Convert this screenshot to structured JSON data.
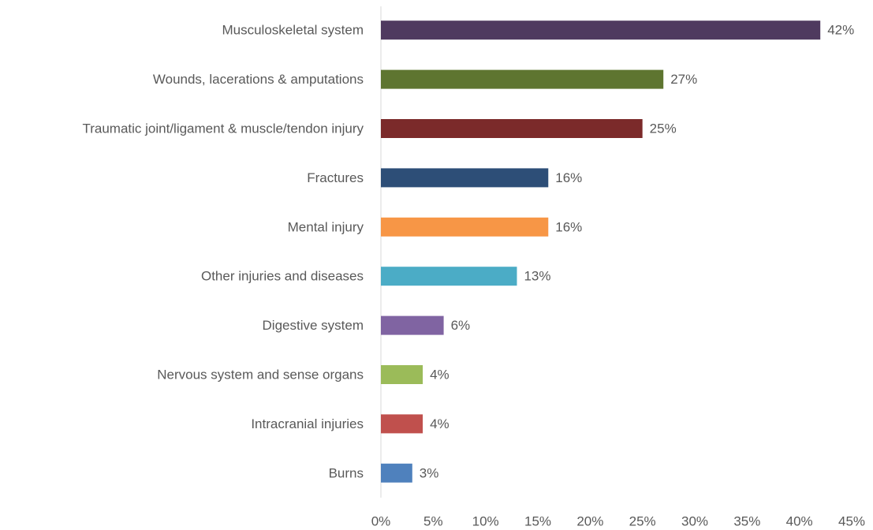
{
  "chart_data": {
    "type": "barh",
    "categories": [
      "Musculoskeletal system",
      "Wounds, lacerations & amputations",
      "Traumatic joint/ligament & muscle/tendon injury",
      "Fractures",
      "Mental injury",
      "Other injuries and diseases",
      "Digestive system",
      "Nervous system and sense organs",
      "Intracranial injuries",
      "Burns"
    ],
    "values": [
      42,
      27,
      25,
      16,
      16,
      13,
      6,
      4,
      4,
      3
    ],
    "value_labels": [
      "42%",
      "27%",
      "25%",
      "16%",
      "16%",
      "13%",
      "6%",
      "4%",
      "4%",
      "3%"
    ],
    "colors": [
      "#4f3a5f",
      "#5e7530",
      "#7b2a2a",
      "#2d4e77",
      "#f79646",
      "#4bacc6",
      "#8064a2",
      "#9bbb59",
      "#c0504d",
      "#4f81bd"
    ],
    "xlim": [
      0,
      45
    ],
    "xticks": [
      {
        "value": 0,
        "label": "0%"
      },
      {
        "value": 5,
        "label": "5%"
      },
      {
        "value": 10,
        "label": "10%"
      },
      {
        "value": 15,
        "label": "15%"
      },
      {
        "value": 20,
        "label": "20%"
      },
      {
        "value": 25,
        "label": "25%"
      },
      {
        "value": 30,
        "label": "30%"
      },
      {
        "value": 35,
        "label": "35%"
      },
      {
        "value": 40,
        "label": "40%"
      },
      {
        "value": 45,
        "label": "45%"
      }
    ],
    "grid": false
  }
}
